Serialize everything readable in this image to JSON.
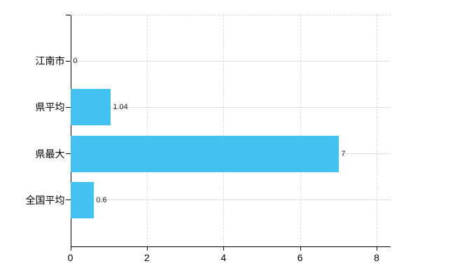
{
  "chart_data": {
    "type": "bar",
    "orientation": "horizontal",
    "title": "",
    "xlabel": "",
    "ylabel": "",
    "categories": [
      "江南市",
      "県平均",
      "県最大",
      "全国平均"
    ],
    "values": [
      0,
      1.04,
      7,
      0.6
    ],
    "value_labels": [
      "0",
      "1.04",
      "7",
      "0.6"
    ],
    "xticks": [
      "0",
      "2",
      "4",
      "6",
      "8"
    ],
    "xtick_values": [
      0,
      2,
      4,
      6,
      8
    ],
    "xlim": [
      0,
      8.37
    ],
    "legend": null,
    "grid": {
      "horizontal": "solid",
      "vertical": "dashed",
      "top_border": "dashed"
    },
    "colors": {
      "bar": "#41c2f0",
      "axis": "#000000",
      "horizontal_gridline": "#dbe2db",
      "vertical_gridline": "#d9d9d9",
      "category_label": "#000000",
      "value_label": "#1a1a1a"
    }
  }
}
